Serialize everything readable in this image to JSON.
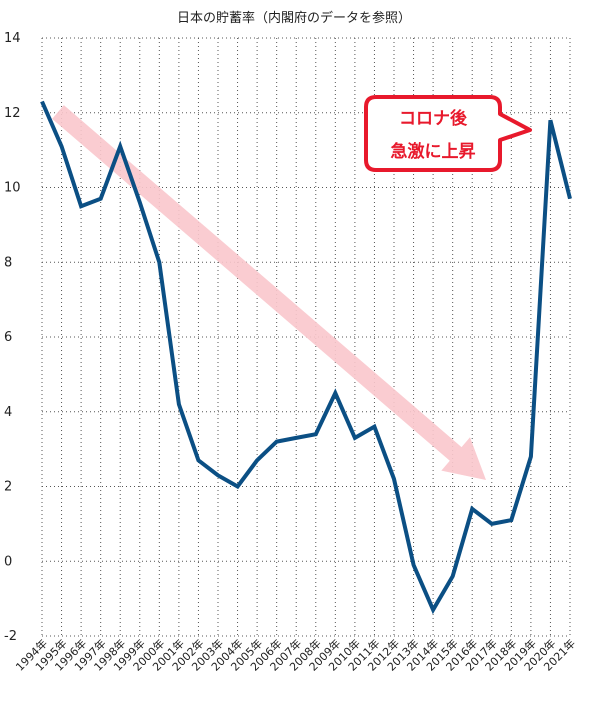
{
  "chart_data": {
    "type": "line",
    "title": "日本の貯蓄率（内閣府のデータを参照）",
    "xlabel": "",
    "ylabel": "",
    "ylim": [
      -2,
      14
    ],
    "yticks": [
      -2,
      0,
      2,
      4,
      6,
      8,
      10,
      12,
      14
    ],
    "grid": true,
    "categories": [
      "1994年",
      "1995年",
      "1996年",
      "1997年",
      "1998年",
      "1999年",
      "2000年",
      "2001年",
      "2002年",
      "2003年",
      "2004年",
      "2005年",
      "2006年",
      "2007年",
      "2008年",
      "2009年",
      "2010年",
      "2011年",
      "2012年",
      "2013年",
      "2014年",
      "2015年",
      "2016年",
      "2017年",
      "2018年",
      "2019年",
      "2020年",
      "2021年"
    ],
    "series": [
      {
        "color": "#0b4f84",
        "values": [
          12.3,
          11.1,
          9.5,
          9.7,
          11.1,
          9.6,
          8.0,
          4.2,
          2.7,
          2.3,
          2.0,
          2.7,
          3.2,
          3.3,
          3.4,
          4.5,
          3.3,
          3.6,
          2.2,
          -0.1,
          -1.3,
          -0.4,
          1.4,
          1.0,
          1.1,
          2.8,
          11.8,
          9.7
        ]
      }
    ],
    "annotations": {
      "trend_arrow_color": "#f9c6cc",
      "callout": {
        "line1": "コロナ後",
        "line2": "急激に上昇",
        "border_color": "#e8192c",
        "text_color": "#e8192c"
      }
    }
  }
}
